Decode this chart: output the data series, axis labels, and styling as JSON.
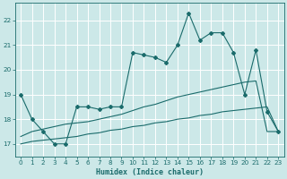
{
  "bg_color": "#cce8e8",
  "grid_color": "#ffffff",
  "line_color": "#1a6b6b",
  "x_label": "Humidex (Indice chaleur)",
  "xlim": [
    -0.5,
    23.5
  ],
  "ylim": [
    16.5,
    22.7
  ],
  "yticks": [
    17,
    18,
    19,
    20,
    21,
    22
  ],
  "xticks": [
    0,
    1,
    2,
    3,
    4,
    5,
    6,
    7,
    8,
    9,
    10,
    11,
    12,
    13,
    14,
    15,
    16,
    17,
    18,
    19,
    20,
    21,
    22,
    23
  ],
  "series1_x": [
    0,
    1,
    2,
    3,
    4,
    5,
    6,
    7,
    8,
    9,
    10,
    11,
    12,
    13,
    14,
    15,
    16,
    17,
    18,
    19,
    20,
    21,
    22,
    23
  ],
  "series1_y": [
    19.0,
    18.0,
    17.5,
    17.0,
    17.0,
    18.5,
    18.5,
    18.4,
    18.5,
    18.5,
    20.7,
    20.6,
    20.5,
    20.3,
    21.0,
    22.3,
    21.2,
    21.5,
    21.5,
    20.7,
    19.0,
    20.8,
    18.3,
    17.5
  ],
  "series2_x": [
    0,
    1,
    2,
    3,
    4,
    5,
    6,
    7,
    8,
    9,
    10,
    11,
    12,
    13,
    14,
    15,
    16,
    17,
    18,
    19,
    20,
    21,
    22,
    23
  ],
  "series2_y": [
    17.3,
    17.5,
    17.6,
    17.7,
    17.8,
    17.85,
    17.9,
    18.0,
    18.1,
    18.2,
    18.35,
    18.5,
    18.6,
    18.75,
    18.9,
    19.0,
    19.1,
    19.2,
    19.3,
    19.4,
    19.5,
    19.55,
    17.5,
    17.5
  ],
  "series3_x": [
    0,
    1,
    2,
    3,
    4,
    5,
    6,
    7,
    8,
    9,
    10,
    11,
    12,
    13,
    14,
    15,
    16,
    17,
    18,
    19,
    20,
    21,
    22,
    23
  ],
  "series3_y": [
    17.0,
    17.1,
    17.15,
    17.2,
    17.25,
    17.3,
    17.4,
    17.45,
    17.55,
    17.6,
    17.7,
    17.75,
    17.85,
    17.9,
    18.0,
    18.05,
    18.15,
    18.2,
    18.3,
    18.35,
    18.4,
    18.45,
    18.5,
    17.5
  ]
}
